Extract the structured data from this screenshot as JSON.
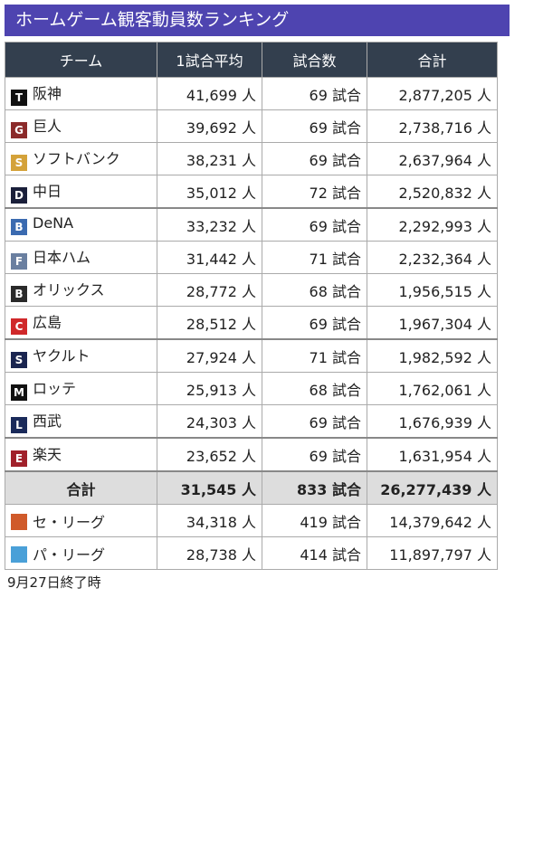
{
  "title": "ホームゲーム観客動員数ランキング",
  "headers": [
    "チーム",
    "1試合平均",
    "試合数",
    "合計"
  ],
  "rows": [
    {
      "team": "阪神",
      "avg": "41,699 人",
      "games": "69 試合",
      "total": "2,877,205 人",
      "icon": "tigers-logo-icon",
      "color": "#111111",
      "glyph": "T"
    },
    {
      "team": "巨人",
      "avg": "39,692 人",
      "games": "69 試合",
      "total": "2,738,716 人",
      "icon": "giants-logo-icon",
      "color": "#8b2a2a",
      "glyph": "G"
    },
    {
      "team": "ソフトバンク",
      "avg": "38,231 人",
      "games": "69 試合",
      "total": "2,637,964 人",
      "icon": "hawks-logo-icon",
      "color": "#d4a23a",
      "glyph": "S"
    },
    {
      "team": "中日",
      "avg": "35,012 人",
      "games": "72 試合",
      "total": "2,520,832 人",
      "icon": "dragons-logo-icon",
      "color": "#1a1f3a",
      "glyph": "D"
    },
    {
      "team": "DeNA",
      "avg": "33,232 人",
      "games": "69 試合",
      "total": "2,292,993 人",
      "icon": "baystars-logo-icon",
      "color": "#3a6ab0",
      "glyph": "B"
    },
    {
      "team": "日本ハム",
      "avg": "31,442 人",
      "games": "71 試合",
      "total": "2,232,364 人",
      "icon": "fighters-logo-icon",
      "color": "#6a7fa0",
      "glyph": "F"
    },
    {
      "team": "オリックス",
      "avg": "28,772 人",
      "games": "68 試合",
      "total": "1,956,515 人",
      "icon": "buffaloes-logo-icon",
      "color": "#2a2a2a",
      "glyph": "B"
    },
    {
      "team": "広島",
      "avg": "28,512 人",
      "games": "69 試合",
      "total": "1,967,304 人",
      "icon": "carp-logo-icon",
      "color": "#d0282a",
      "glyph": "C"
    },
    {
      "team": "ヤクルト",
      "avg": "27,924 人",
      "games": "71 試合",
      "total": "1,982,592 人",
      "icon": "swallows-logo-icon",
      "color": "#1a2550",
      "glyph": "S"
    },
    {
      "team": "ロッテ",
      "avg": "25,913 人",
      "games": "68 試合",
      "total": "1,762,061 人",
      "icon": "marines-logo-icon",
      "color": "#111111",
      "glyph": "M"
    },
    {
      "team": "西武",
      "avg": "24,303 人",
      "games": "69 試合",
      "total": "1,676,939 人",
      "icon": "lions-logo-icon",
      "color": "#1a2a5a",
      "glyph": "L"
    },
    {
      "team": "楽天",
      "avg": "23,652 人",
      "games": "69 試合",
      "total": "1,631,954 人",
      "icon": "eagles-logo-icon",
      "color": "#a0202a",
      "glyph": "E"
    }
  ],
  "total": {
    "team": "合計",
    "avg": "31,545 人",
    "games": "833 試合",
    "total": "26,277,439 人"
  },
  "leagues": [
    {
      "team": "セ・リーグ",
      "avg": "34,318 人",
      "games": "419 試合",
      "total": "14,379,642 人",
      "icon": "central-league-logo-icon",
      "color": "#d05a2a"
    },
    {
      "team": "パ・リーグ",
      "avg": "28,738 人",
      "games": "414 試合",
      "total": "11,897,797 人",
      "icon": "pacific-league-logo-icon",
      "color": "#4aa0d8"
    }
  ],
  "footnote": "9月27日終了時"
}
